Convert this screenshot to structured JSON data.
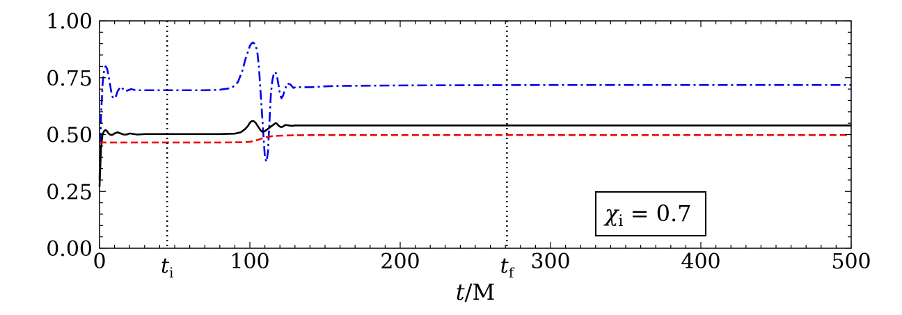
{
  "chart_data": {
    "type": "line",
    "xlabel": "t/M",
    "xlim": [
      0,
      500
    ],
    "ylim": [
      0,
      1.0
    ],
    "x_ticks": [
      {
        "value": 0,
        "label": "0"
      },
      {
        "value": 100,
        "label": "100"
      },
      {
        "value": 200,
        "label": "200"
      },
      {
        "value": 300,
        "label": "300"
      },
      {
        "value": 400,
        "label": "400"
      },
      {
        "value": 500,
        "label": "500"
      }
    ],
    "y_ticks": [
      {
        "value": 0.0,
        "label": "0.00"
      },
      {
        "value": 0.25,
        "label": "0.25"
      },
      {
        "value": 0.5,
        "label": "0.50"
      },
      {
        "value": 0.75,
        "label": "0.75"
      },
      {
        "value": 1.0,
        "label": "1.00"
      }
    ],
    "vlines": [
      {
        "x": 45,
        "label_base": "t",
        "label_sub": "i"
      },
      {
        "x": 271,
        "label_base": "t",
        "label_sub": "f"
      }
    ],
    "annotation": {
      "symbol": "χ",
      "sub": "i",
      "rest": " = 0.7",
      "position": "bottom-right"
    },
    "grid": false,
    "series": [
      {
        "color": "#0000ee",
        "style": "dash-dot",
        "x": [
          0,
          1,
          2,
          3,
          4,
          5,
          6,
          7,
          8,
          9,
          10,
          11,
          12,
          13,
          14,
          15,
          17,
          19,
          21,
          24,
          27,
          30,
          35,
          40,
          50,
          60,
          70,
          80,
          88,
          92,
          95,
          97,
          99,
          100,
          101,
          102,
          103,
          104,
          105,
          106,
          107,
          108,
          109,
          110,
          111,
          112,
          113,
          114,
          115,
          116,
          117,
          118,
          119,
          120,
          121,
          122,
          123,
          124,
          125,
          127,
          129,
          131,
          133,
          136,
          140,
          145,
          150,
          160,
          180,
          200,
          250,
          300,
          350,
          400,
          450,
          500
        ],
        "y": [
          0.3,
          0.58,
          0.72,
          0.78,
          0.8,
          0.79,
          0.76,
          0.72,
          0.68,
          0.66,
          0.66,
          0.67,
          0.69,
          0.7,
          0.71,
          0.705,
          0.69,
          0.695,
          0.7,
          0.695,
          0.695,
          0.695,
          0.695,
          0.695,
          0.695,
          0.695,
          0.695,
          0.697,
          0.705,
          0.73,
          0.78,
          0.83,
          0.87,
          0.89,
          0.9,
          0.905,
          0.9,
          0.89,
          0.86,
          0.8,
          0.7,
          0.6,
          0.5,
          0.4,
          0.38,
          0.42,
          0.55,
          0.68,
          0.74,
          0.77,
          0.775,
          0.76,
          0.72,
          0.68,
          0.66,
          0.67,
          0.69,
          0.71,
          0.725,
          0.72,
          0.705,
          0.71,
          0.708,
          0.708,
          0.708,
          0.71,
          0.712,
          0.714,
          0.715,
          0.716,
          0.717,
          0.718,
          0.718,
          0.718,
          0.718,
          0.718
        ]
      },
      {
        "color": "#000000",
        "style": "solid",
        "x": [
          0,
          1,
          2,
          3,
          4,
          5,
          6,
          7,
          8,
          9,
          10,
          12,
          14,
          16,
          18,
          20,
          25,
          30,
          40,
          60,
          80,
          90,
          94,
          97,
          99,
          100,
          101,
          102,
          103,
          104,
          105,
          106,
          107,
          108,
          109,
          110,
          111,
          112,
          113,
          114,
          115,
          116,
          117,
          118,
          119,
          120,
          121,
          122,
          123,
          124,
          126,
          128,
          130,
          133,
          136,
          140,
          150,
          170,
          200,
          250,
          300,
          400,
          500
        ],
        "y": [
          0.27,
          0.44,
          0.5,
          0.515,
          0.52,
          0.515,
          0.505,
          0.5,
          0.498,
          0.5,
          0.505,
          0.51,
          0.505,
          0.5,
          0.5,
          0.505,
          0.5,
          0.502,
          0.502,
          0.502,
          0.502,
          0.504,
          0.51,
          0.525,
          0.54,
          0.552,
          0.558,
          0.56,
          0.557,
          0.55,
          0.54,
          0.53,
          0.52,
          0.513,
          0.512,
          0.515,
          0.52,
          0.525,
          0.53,
          0.535,
          0.54,
          0.545,
          0.55,
          0.548,
          0.54,
          0.535,
          0.533,
          0.535,
          0.54,
          0.542,
          0.54,
          0.538,
          0.54,
          0.54,
          0.54,
          0.54,
          0.54,
          0.54,
          0.54,
          0.54,
          0.54,
          0.54,
          0.54
        ]
      },
      {
        "color": "#ee0000",
        "style": "dashed",
        "x": [
          0,
          5,
          20,
          40,
          60,
          80,
          95,
          100,
          103,
          106,
          109,
          112,
          115,
          120,
          130,
          150,
          200,
          300,
          400,
          500
        ],
        "y": [
          0.465,
          0.465,
          0.465,
          0.465,
          0.465,
          0.465,
          0.466,
          0.468,
          0.472,
          0.478,
          0.485,
          0.49,
          0.493,
          0.495,
          0.497,
          0.498,
          0.498,
          0.498,
          0.498,
          0.498
        ]
      }
    ]
  }
}
